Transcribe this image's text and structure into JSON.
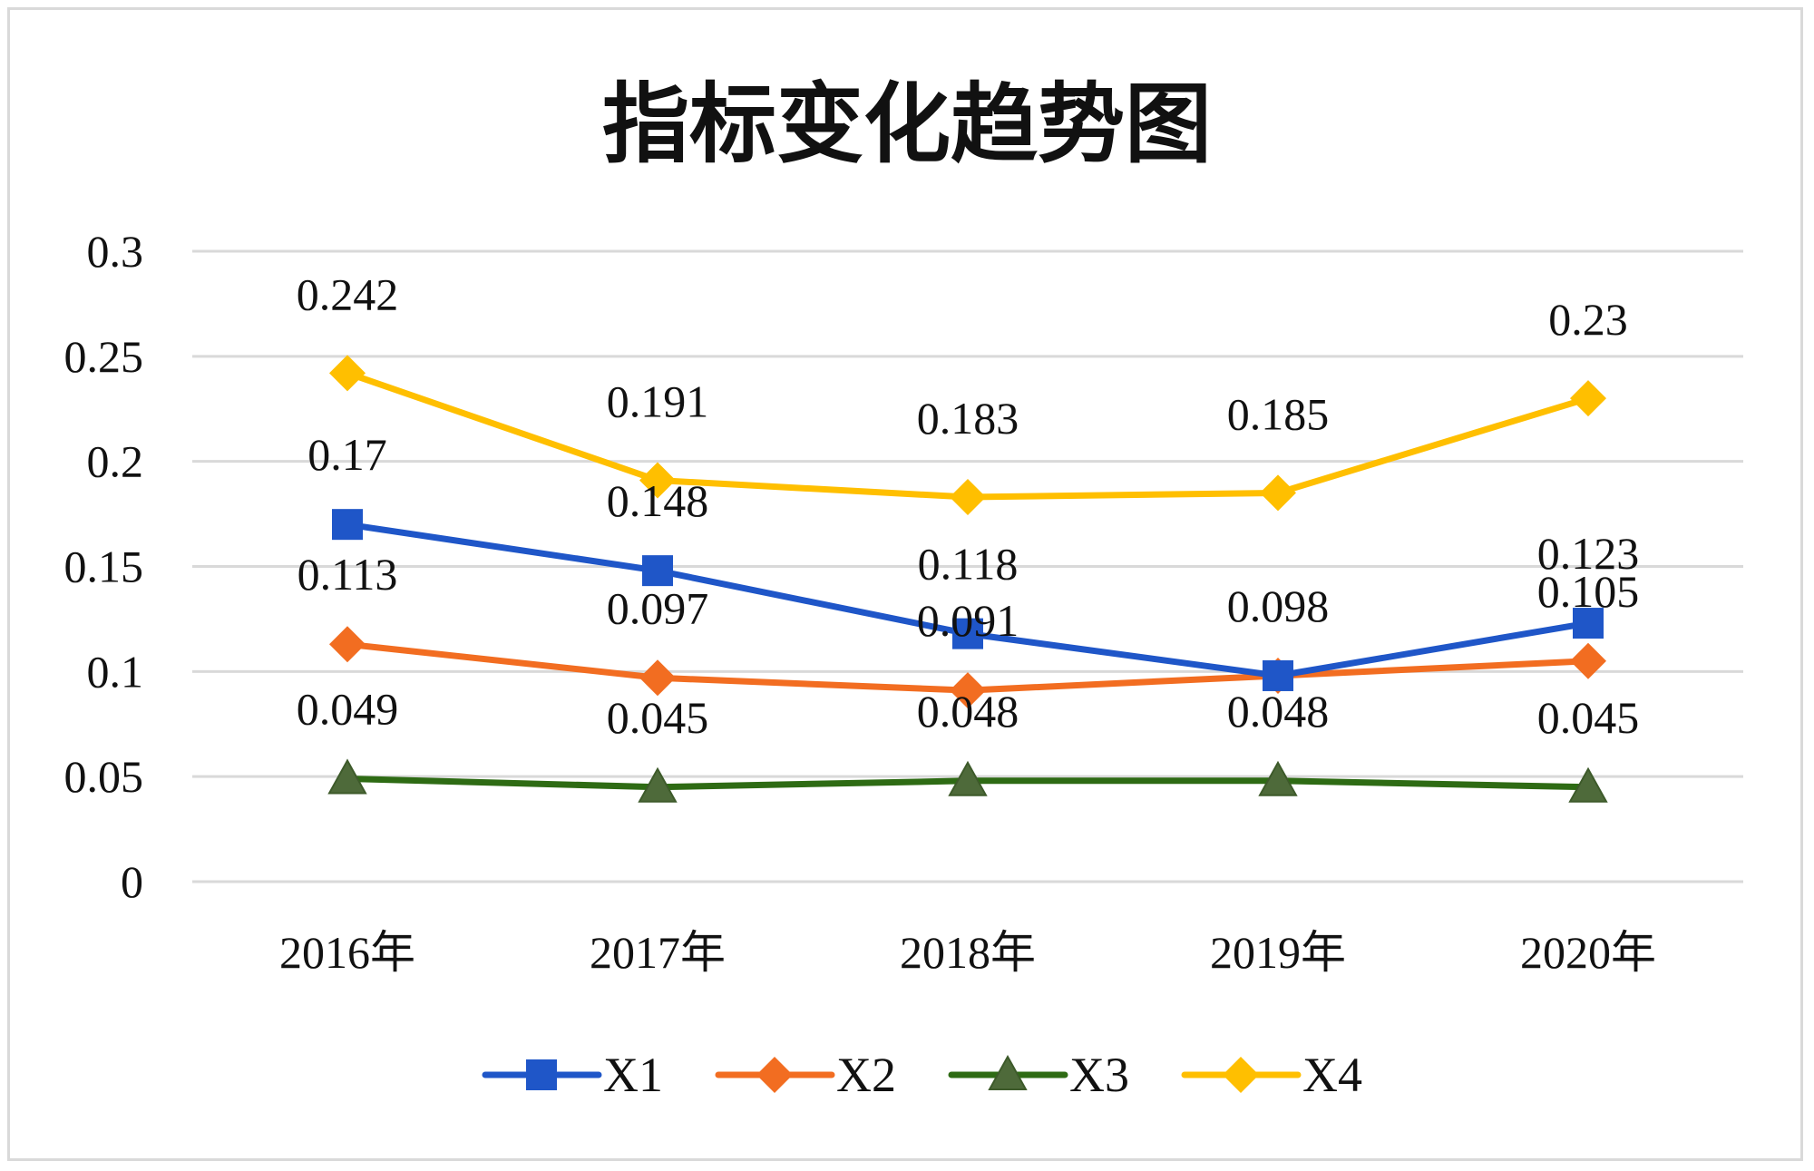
{
  "chart_data": {
    "type": "line",
    "title": "指标变化趋势图",
    "categories": [
      "2016年",
      "2017年",
      "2018年",
      "2019年",
      "2020年"
    ],
    "ylim": [
      0,
      0.3
    ],
    "yticks": [
      "0",
      "0.05",
      "0.1",
      "0.15",
      "0.2",
      "0.25",
      "0.3"
    ],
    "grid": true,
    "legend_position": "bottom",
    "series": [
      {
        "name": "X1",
        "values": [
          0.17,
          0.148,
          0.118,
          0.098,
          0.123
        ],
        "labels": [
          "0.17",
          "0.148",
          "0.118",
          "0.098",
          "0.123"
        ],
        "color": "#1f56c8",
        "marker": "square"
      },
      {
        "name": "X2",
        "values": [
          0.113,
          0.097,
          0.091,
          0.098,
          0.105
        ],
        "labels": [
          "0.113",
          "0.097",
          "0.091",
          "",
          "0.105"
        ],
        "color": "#f26d21",
        "marker": "diamond"
      },
      {
        "name": "X3",
        "values": [
          0.049,
          0.045,
          0.048,
          0.048,
          0.045
        ],
        "labels": [
          "0.049",
          "0.045",
          "0.048",
          "0.048",
          "0.045"
        ],
        "color": "#2e6b14",
        "marker": "triangle"
      },
      {
        "name": "X4",
        "values": [
          0.242,
          0.191,
          0.183,
          0.185,
          0.23
        ],
        "labels": [
          "0.242",
          "0.191",
          "0.183",
          "0.185",
          "0.23"
        ],
        "color": "#ffbf00",
        "marker": "diamond"
      }
    ]
  }
}
